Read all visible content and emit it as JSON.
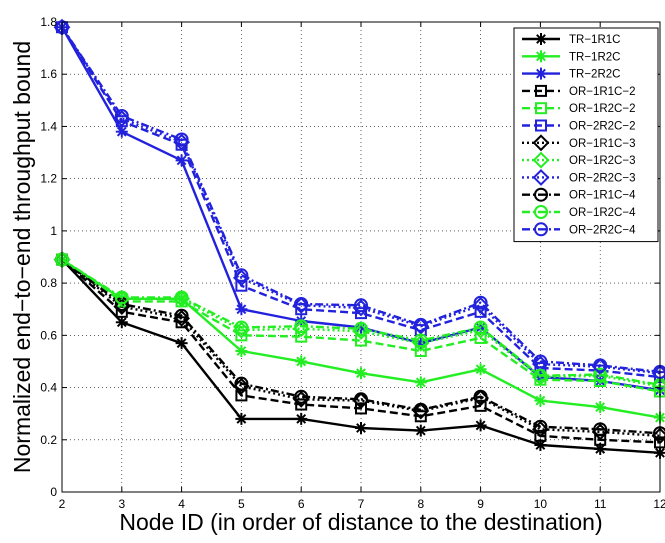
{
  "chart_data": {
    "type": "line",
    "title": "",
    "xlabel": "Node ID (in order of distance to the destination)",
    "ylabel": "Normalized end−to−end throughput bound",
    "x": [
      2,
      3,
      4,
      5,
      6,
      7,
      8,
      9,
      10,
      11,
      12
    ],
    "xlim": [
      2,
      12
    ],
    "ylim": [
      0,
      1.8
    ],
    "xticks": [
      "2",
      "3",
      "4",
      "5",
      "6",
      "7",
      "8",
      "9",
      "10",
      "11",
      "12"
    ],
    "yticks": [
      "0",
      "0.2",
      "0.4",
      "0.6",
      "0.8",
      "1",
      "1.2",
      "1.4",
      "1.6",
      "1.8"
    ],
    "grid": true,
    "legend_position": "top-right",
    "series": [
      {
        "name": "TR−1R1C",
        "color": "#000000",
        "dash": "solid",
        "marker": "asterisk",
        "values": [
          0.89,
          0.65,
          0.57,
          0.28,
          0.28,
          0.245,
          0.235,
          0.255,
          0.18,
          0.165,
          0.15
        ]
      },
      {
        "name": "TR−1R2C",
        "color": "#22ee22",
        "dash": "solid",
        "marker": "asterisk",
        "values": [
          0.89,
          0.74,
          0.74,
          0.54,
          0.5,
          0.455,
          0.42,
          0.47,
          0.35,
          0.325,
          0.285
        ]
      },
      {
        "name": "TR−2R2C",
        "color": "#2222dd",
        "dash": "solid",
        "marker": "asterisk",
        "values": [
          1.78,
          1.38,
          1.27,
          0.7,
          0.655,
          0.63,
          0.57,
          0.63,
          0.44,
          0.425,
          0.39
        ]
      },
      {
        "name": "OR−1R1C−2",
        "color": "#000000",
        "dash": "dashed",
        "marker": "square",
        "values": [
          0.89,
          0.69,
          0.65,
          0.37,
          0.335,
          0.32,
          0.29,
          0.33,
          0.215,
          0.2,
          0.19
        ]
      },
      {
        "name": "OR−1R2C−2",
        "color": "#22ee22",
        "dash": "dashed",
        "marker": "square",
        "values": [
          0.89,
          0.73,
          0.73,
          0.6,
          0.595,
          0.58,
          0.54,
          0.59,
          0.43,
          0.425,
          0.385
        ]
      },
      {
        "name": "OR−2R2C−2",
        "color": "#2222dd",
        "dash": "dashed",
        "marker": "square",
        "values": [
          1.78,
          1.42,
          1.33,
          0.79,
          0.7,
          0.685,
          0.62,
          0.69,
          0.475,
          0.465,
          0.44
        ]
      },
      {
        "name": "OR−1R1C−3",
        "color": "#000000",
        "dash": "dotted",
        "marker": "diamond",
        "values": [
          0.89,
          0.71,
          0.665,
          0.405,
          0.355,
          0.35,
          0.31,
          0.36,
          0.24,
          0.23,
          0.215
        ]
      },
      {
        "name": "OR−1R2C−3",
        "color": "#22ee22",
        "dash": "dotted",
        "marker": "diamond",
        "values": [
          0.89,
          0.74,
          0.74,
          0.62,
          0.625,
          0.615,
          0.57,
          0.62,
          0.44,
          0.445,
          0.405
        ]
      },
      {
        "name": "OR−2R2C−3",
        "color": "#2222dd",
        "dash": "dotted",
        "marker": "diamond",
        "values": [
          1.78,
          1.43,
          1.34,
          0.82,
          0.715,
          0.705,
          0.635,
          0.715,
          0.49,
          0.48,
          0.455
        ]
      },
      {
        "name": "OR−1R1C−4",
        "color": "#000000",
        "dash": "dashdot",
        "marker": "circle",
        "values": [
          0.89,
          0.72,
          0.675,
          0.415,
          0.365,
          0.355,
          0.315,
          0.365,
          0.25,
          0.24,
          0.225
        ]
      },
      {
        "name": "OR−1R2C−4",
        "color": "#22ee22",
        "dash": "dashdot",
        "marker": "circle",
        "values": [
          0.89,
          0.745,
          0.745,
          0.63,
          0.635,
          0.625,
          0.58,
          0.63,
          0.445,
          0.45,
          0.41
        ]
      },
      {
        "name": "OR−2R2C−4",
        "color": "#2222dd",
        "dash": "dashdot",
        "marker": "circle",
        "values": [
          1.78,
          1.44,
          1.35,
          0.83,
          0.72,
          0.715,
          0.64,
          0.725,
          0.5,
          0.485,
          0.46
        ]
      }
    ]
  }
}
